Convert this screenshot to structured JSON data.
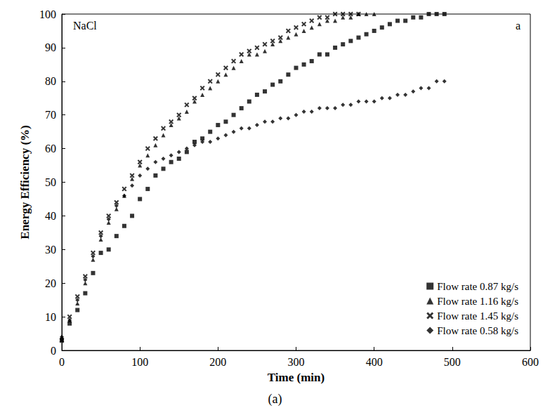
{
  "chart_data": {
    "type": "scatter",
    "x_label": "Time (min)",
    "y_label": "Energy Efficiency (%)",
    "annotations": [
      "NaCl",
      "a"
    ],
    "caption": "(a)",
    "xlim": [
      0,
      600
    ],
    "xticks": [
      0,
      100,
      200,
      300,
      400,
      500,
      600
    ],
    "ylim": [
      0,
      100
    ],
    "yticks": [
      0,
      10,
      20,
      30,
      40,
      50,
      60,
      70,
      80,
      90,
      100
    ],
    "grid": false,
    "legend": "lower right",
    "series": [
      {
        "name": "Flow rate 0.87 kg/s",
        "color": "#000000",
        "marker": "square",
        "x": [
          0,
          10,
          20,
          30,
          40,
          50,
          60,
          70,
          80,
          90,
          100,
          110,
          120,
          130,
          140,
          150,
          160,
          170,
          180,
          190,
          200,
          210,
          220,
          230,
          240,
          250,
          260,
          270,
          280,
          290,
          300,
          310,
          320,
          330,
          340,
          350,
          360,
          370,
          380,
          390,
          400,
          410,
          420,
          430,
          440,
          450,
          460,
          470,
          480,
          490
        ],
        "values": [
          3,
          8,
          12,
          17,
          23,
          29,
          30,
          34,
          37,
          40,
          45,
          48,
          52,
          54,
          56,
          57,
          59,
          62,
          63,
          65,
          67,
          68,
          70,
          72,
          74,
          76,
          77,
          79,
          80,
          82,
          84,
          85,
          86,
          88,
          88,
          90,
          91,
          92,
          93,
          94,
          95,
          96,
          97,
          98,
          98,
          99,
          99,
          100,
          100,
          100
        ]
      },
      {
        "name": "Flow rate 1.16 kg/s",
        "color": "#000000",
        "marker": "triangle",
        "x": [
          0,
          10,
          20,
          30,
          40,
          50,
          60,
          70,
          80,
          90,
          100,
          110,
          120,
          130,
          140,
          150,
          160,
          170,
          180,
          190,
          200,
          210,
          220,
          230,
          240,
          250,
          260,
          270,
          280,
          290,
          300,
          310,
          320,
          330,
          340,
          350,
          360,
          370,
          380,
          390,
          400
        ],
        "values": [
          4,
          9,
          14,
          20,
          27,
          33,
          38,
          42,
          46,
          51,
          55,
          58,
          61,
          64,
          67,
          69,
          71,
          74,
          76,
          78,
          80,
          82,
          84,
          86,
          88,
          88,
          89,
          91,
          92,
          93,
          94,
          95,
          96,
          97,
          98,
          98,
          99,
          99,
          100,
          100,
          100
        ]
      },
      {
        "name": "Flow rate 1.45 kg/s",
        "color": "#000000",
        "marker": "x",
        "x": [
          0,
          10,
          20,
          30,
          40,
          50,
          60,
          70,
          80,
          90,
          100,
          110,
          120,
          130,
          140,
          150,
          160,
          170,
          180,
          190,
          200,
          210,
          220,
          230,
          240,
          250,
          260,
          270,
          280,
          290,
          300,
          310,
          320,
          330,
          340,
          350,
          360,
          370,
          380
        ],
        "values": [
          3,
          10,
          16,
          22,
          29,
          35,
          40,
          44,
          48,
          52,
          56,
          60,
          63,
          66,
          68,
          70,
          73,
          75,
          78,
          80,
          82,
          84,
          86,
          88,
          89,
          90,
          91,
          92,
          93,
          95,
          96,
          97,
          98,
          99,
          99,
          100,
          100,
          100,
          100
        ]
      },
      {
        "name": "Flow rate 0.58 kg/s",
        "color": "#000000",
        "marker": "diamond",
        "x": [
          0,
          10,
          20,
          30,
          40,
          50,
          60,
          70,
          80,
          90,
          100,
          110,
          120,
          130,
          140,
          150,
          160,
          170,
          180,
          190,
          200,
          210,
          220,
          230,
          240,
          250,
          260,
          270,
          280,
          290,
          300,
          310,
          320,
          330,
          340,
          350,
          360,
          370,
          380,
          390,
          400,
          410,
          420,
          430,
          440,
          450,
          460,
          470,
          480,
          490
        ],
        "values": [
          4,
          9,
          15,
          21,
          28,
          34,
          39,
          43,
          46,
          49,
          52,
          54,
          56,
          57,
          58,
          59,
          60,
          61,
          62,
          62,
          63,
          64,
          65,
          66,
          66,
          67,
          68,
          68,
          69,
          69,
          70,
          71,
          71,
          72,
          72,
          72,
          73,
          73,
          74,
          74,
          74,
          75,
          75,
          76,
          76,
          77,
          78,
          78,
          80,
          80
        ]
      }
    ]
  }
}
